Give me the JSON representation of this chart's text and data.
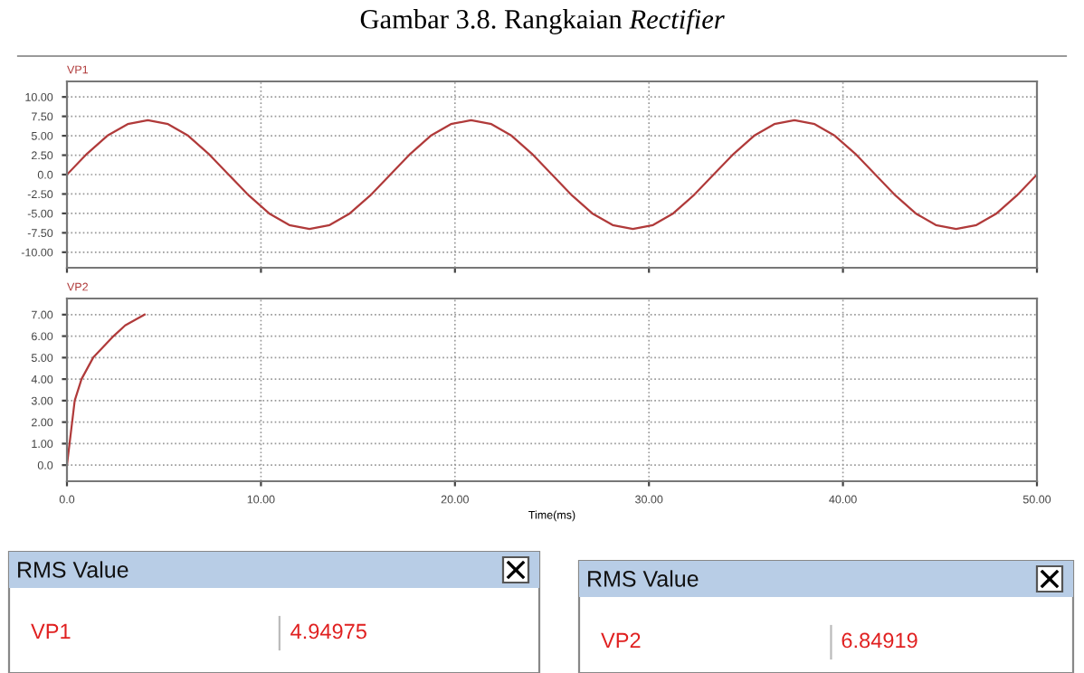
{
  "chart_data": [
    {
      "type": "line",
      "title": "Gambar 3.8. Rangkaian Rectifier",
      "series": [
        {
          "name": "VP1",
          "color": "#b03a3a",
          "x": [
            0,
            1.04,
            2.08,
            3.13,
            4.17,
            5.21,
            6.25,
            7.29,
            8.33,
            9.38,
            10.42,
            11.46,
            12.5,
            13.54,
            14.58,
            15.63,
            16.67,
            17.71,
            18.75,
            19.79,
            20.83,
            21.88,
            22.92,
            23.96,
            25,
            26.04,
            27.08,
            28.13,
            29.17,
            30.21,
            31.25,
            32.29,
            33.33,
            34.38,
            35.42,
            36.46,
            37.5,
            38.54,
            39.58,
            40.63,
            41.67,
            42.71,
            43.75,
            44.79,
            45.83,
            46.88,
            47.92,
            48.96,
            50
          ],
          "values": [
            0,
            2.7,
            5,
            6.5,
            7,
            6.5,
            5,
            2.7,
            0,
            -2.7,
            -5,
            -6.5,
            -7,
            -6.5,
            -5,
            -2.7,
            0,
            2.7,
            5,
            6.5,
            7,
            6.5,
            5,
            2.7,
            0,
            -2.7,
            -5,
            -6.5,
            -7,
            -6.5,
            -5,
            -2.7,
            0,
            2.7,
            5,
            6.5,
            7,
            6.5,
            5,
            2.7,
            0,
            -2.7,
            -5,
            -6.5,
            -7,
            -6.5,
            -5,
            -2.7,
            0
          ]
        }
      ],
      "xlim": [
        0,
        50
      ],
      "xticks": [
        {
          "value": 0,
          "label": null
        },
        {
          "value": 10,
          "label": null
        },
        {
          "value": 20,
          "label": null
        },
        {
          "value": 30,
          "label": null
        },
        {
          "value": 40,
          "label": null
        },
        {
          "value": 50,
          "label": null
        }
      ],
      "ylim": [
        -12,
        12
      ],
      "yticks": [
        {
          "value": -10,
          "label": "-10.00"
        },
        {
          "value": -7.5,
          "label": "-7.50"
        },
        {
          "value": -5,
          "label": "-5.00"
        },
        {
          "value": -2.5,
          "label": "-2.50"
        },
        {
          "value": 0,
          "label": "0.0"
        },
        {
          "value": 2.5,
          "label": "2.50"
        },
        {
          "value": 5,
          "label": "5.00"
        },
        {
          "value": 7.5,
          "label": "7.50"
        },
        {
          "value": 10,
          "label": "10.00"
        }
      ],
      "grid": true,
      "line_style": "solid",
      "tick_labels": "y"
    },
    {
      "type": "line",
      "xlabel": "Time(ms)",
      "series": [
        {
          "name": "VP2",
          "color": "#b03a3a",
          "x": [
            0,
            0.2,
            0.4,
            0.75,
            1.35,
            2.4,
            3.0,
            4.0
          ],
          "values": [
            0,
            1.5,
            3,
            4,
            5,
            6,
            6.5,
            7
          ]
        }
      ],
      "xlim": [
        0,
        50
      ],
      "xticks": [
        {
          "value": 0,
          "label": "0.0"
        },
        {
          "value": 10,
          "label": "10.00"
        },
        {
          "value": 20,
          "label": "20.00"
        },
        {
          "value": 30,
          "label": "30.00"
        },
        {
          "value": 40,
          "label": "40.00"
        },
        {
          "value": 50,
          "label": "50.00"
        }
      ],
      "ylim": [
        -0.75,
        7.75
      ],
      "yticks": [
        {
          "value": 0,
          "label": "0.0"
        },
        {
          "value": 1,
          "label": "1.00"
        },
        {
          "value": 2,
          "label": "2.00"
        },
        {
          "value": 3,
          "label": "3.00"
        },
        {
          "value": 4,
          "label": "4.00"
        },
        {
          "value": 5,
          "label": "5.00"
        },
        {
          "value": 6,
          "label": "6.00"
        },
        {
          "value": 7,
          "label": "7.00"
        }
      ],
      "grid": true,
      "line_style": "solid"
    },
    {
      "type": "other",
      "annotations": [
        "RMS Value",
        "VP1",
        "4.94975",
        "RMS Value",
        "VP2",
        "6.84919"
      ]
    }
  ]
}
